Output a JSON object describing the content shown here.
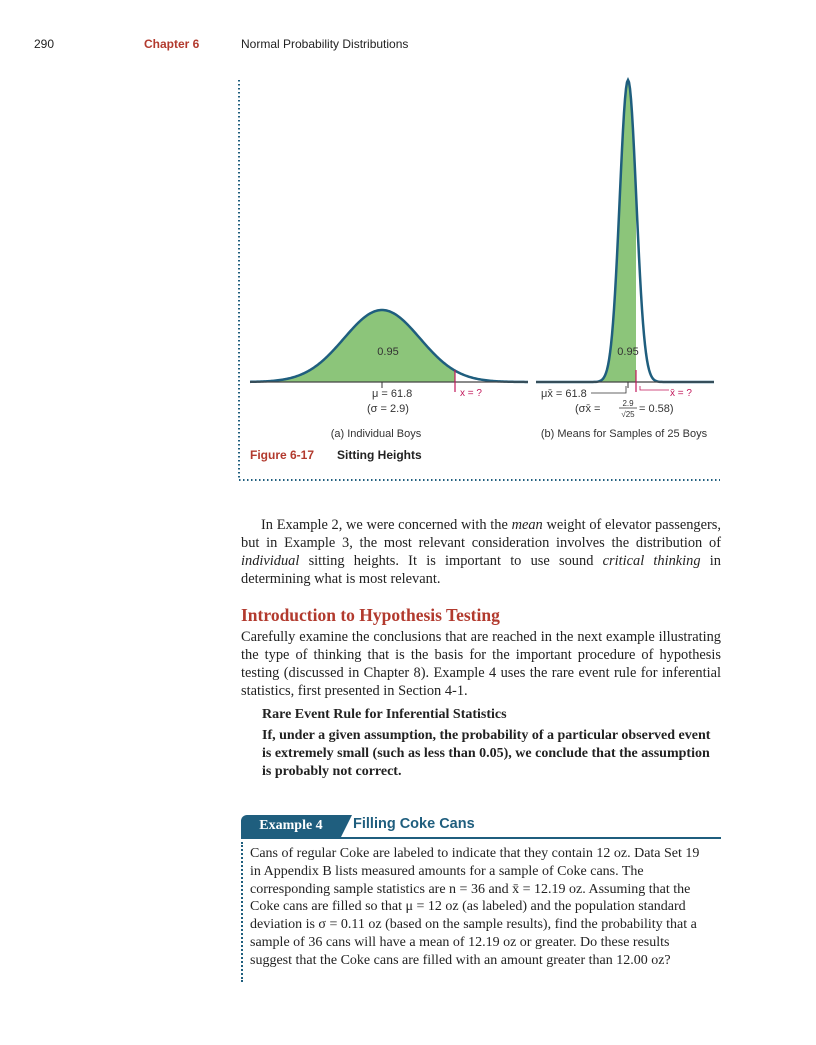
{
  "header": {
    "page_number": "290",
    "chapter_label": "Chapter 6",
    "chapter_title": "Normal Probability Distributions"
  },
  "figure": {
    "caption_label": "Figure 6-17",
    "caption_title": "Sitting Heights",
    "panel_a": {
      "area_label": "0.95",
      "mu_label": "μ = 61.8",
      "sigma_label": "(σ = 2.9)",
      "x_label": "x = ?",
      "title": "(a) Individual Boys"
    },
    "panel_b": {
      "area_label": "0.95",
      "mu_label": "μx̄ = 61.8",
      "sigma_label_prefix": "(σx̄ =",
      "sigma_numerator": "2.9",
      "sigma_denominator": "√25",
      "sigma_label_suffix": "= 0.58)",
      "x_label": "x̄ = ?",
      "title": "(b) Means for Samples of 25 Boys"
    },
    "colors": {
      "fill": "#8cc57a",
      "marker": "#c2185b",
      "frame": "#1f5e7e"
    }
  },
  "para1": {
    "t1": "In Example 2, we were concerned with the ",
    "mean": "mean",
    "t2": " weight of elevator passengers, but in Example 3, the most relevant consideration involves the distribution of ",
    "individual": "individual",
    "t3": " sitting heights. It is important to use sound ",
    "critical": "critical thinking",
    "t4": " in determining what is most relevant."
  },
  "section": {
    "heading": "Introduction to Hypothesis Testing",
    "para2": "Carefully examine the conclusions that are reached in the next example illustrating the type of thinking that is the basis for the important procedure of hypothesis testing (discussed in Chapter 8). Example 4 uses the rare event rule for inferential statistics, first presented in Section 4-1."
  },
  "rule": {
    "title": "Rare Event Rule for Inferential Statistics",
    "body": "If, under a given assumption, the probability of a particular observed event is extremely small (such as less than 0.05), we conclude that the assumption is probably not correct."
  },
  "example": {
    "tab": "Example 4",
    "title": "Filling Coke Cans",
    "body": "Cans of regular Coke are labeled to indicate that they contain 12 oz. Data Set 19 in Appendix B lists measured amounts for a sample of Coke cans. The corresponding sample statistics are n = 36 and x̄ = 12.19 oz. Assuming that the Coke cans are filled so that μ = 12 oz (as labeled) and the population standard deviation is σ = 0.11 oz (based on the sample results), find the probability that a sample of 36 cans will have a mean of 12.19 oz or greater. Do these results suggest that the Coke cans are filled with an amount greater than 12.00 oz?"
  }
}
